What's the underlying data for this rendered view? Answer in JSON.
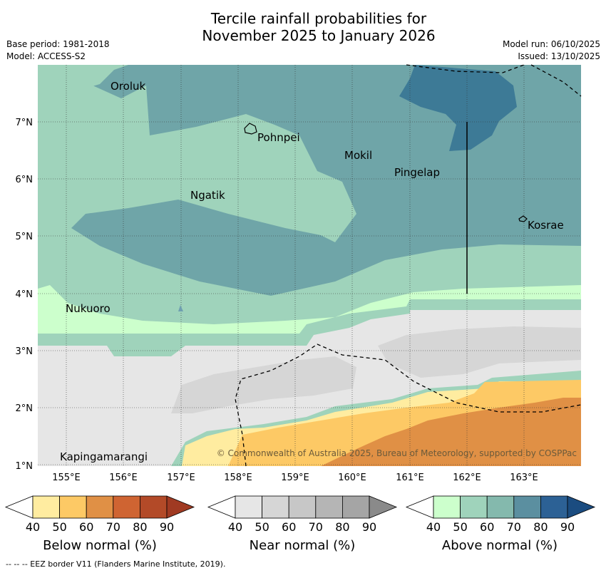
{
  "header": {
    "title_line1": "Tercile rainfall probabilities for",
    "title_line2": "November 2025 to January 2026",
    "base_period": "Base period: 1981-2018",
    "model": "Model: ACCESS-S2",
    "model_run": "Model run: 06/10/2025",
    "issued": "Issued: 13/10/2025"
  },
  "map": {
    "lat_ticks": [
      "7°N",
      "6°N",
      "5°N",
      "4°N",
      "3°N",
      "2°N",
      "1°N"
    ],
    "lon_ticks": [
      "155°E",
      "156°E",
      "157°E",
      "158°E",
      "159°E",
      "160°E",
      "161°E",
      "162°E",
      "163°E"
    ],
    "places": {
      "oroluk": "Oroluk",
      "pohnpei": "Pohnpei",
      "mokil": "Mokil",
      "pingelap": "Pingelap",
      "ngatik": "Ngatik",
      "kosrae": "Kosrae",
      "nukuoro": "Nukuoro",
      "kapingamarangi": "Kapingamarangi"
    },
    "copyright": "© Commonwealth of Australia 2025, Bureau of Meteorology, supported by COSPPac"
  },
  "colorbars": {
    "ticks": [
      "40",
      "50",
      "60",
      "70",
      "80",
      "90"
    ],
    "below": {
      "title": "Below normal (%)",
      "colors": [
        "#ffffff",
        "#ffeca0",
        "#fdc965",
        "#e09045",
        "#cf6432",
        "#b34a28",
        "#a03a22"
      ]
    },
    "near": {
      "title": "Near normal (%)",
      "colors": [
        "#ffffff",
        "#e6e6e6",
        "#d6d6d6",
        "#c7c7c7",
        "#b5b5b5",
        "#a5a5a5",
        "#8a8a8a"
      ]
    },
    "above": {
      "title": "Above normal (%)",
      "colors": [
        "#ffffff",
        "#ccffcc",
        "#9fd3bb",
        "#84b9ad",
        "#5b8fa0",
        "#2c6195",
        "#1b4c80"
      ]
    }
  },
  "footnote": "--  --  -- EEZ border V11 (Flanders Marine Institute, 2019)."
}
